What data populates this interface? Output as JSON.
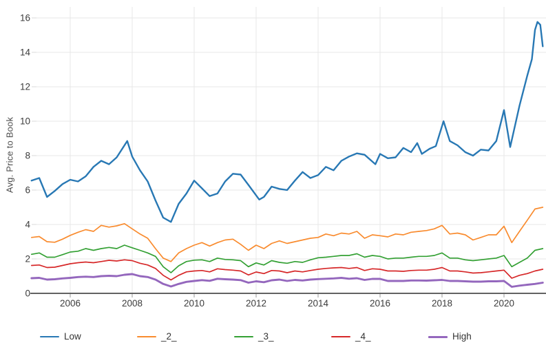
{
  "chart_data": {
    "type": "line",
    "title": "",
    "xlabel": "",
    "ylabel": "Avg. Price to Book",
    "xlim": [
      2004.73,
      2021.36
    ],
    "ylim": [
      0,
      16
    ],
    "grid": true,
    "legend_position": "bottom",
    "x_ticks": [
      2006,
      2008,
      2010,
      2012,
      2014,
      2016,
      2018,
      2020
    ],
    "x_tick_labels": [
      "2006",
      "2008",
      "2010",
      "2012",
      "2014",
      "2016",
      "2018",
      "2020"
    ],
    "y_ticks": [
      0,
      2,
      4,
      6,
      8,
      10,
      12,
      14,
      16
    ],
    "y_tick_labels": [
      "0",
      "2",
      "4",
      "6",
      "8",
      "10",
      "12",
      "14",
      "16"
    ],
    "axis_color": "#2f2f2f",
    "grid_color": "#e7e7e7",
    "tick_label_color": "#3b3b3b",
    "series": [
      {
        "name": "Low",
        "color": "#2878b4",
        "line_width": 2.4,
        "x": [
          2004.75,
          2005.0,
          2005.25,
          2005.5,
          2005.75,
          2006.0,
          2006.25,
          2006.5,
          2006.75,
          2007.0,
          2007.25,
          2007.5,
          2007.84,
          2008.0,
          2008.25,
          2008.5,
          2008.75,
          2009.0,
          2009.25,
          2009.5,
          2009.75,
          2010.0,
          2010.25,
          2010.5,
          2010.75,
          2011.0,
          2011.25,
          2011.5,
          2011.75,
          2012.1,
          2012.25,
          2012.5,
          2012.75,
          2013.0,
          2013.25,
          2013.5,
          2013.75,
          2014.0,
          2014.25,
          2014.5,
          2014.75,
          2015.0,
          2015.25,
          2015.5,
          2015.85,
          2016.0,
          2016.25,
          2016.5,
          2016.75,
          2017.0,
          2017.2,
          2017.35,
          2017.6,
          2017.8,
          2018.05,
          2018.25,
          2018.5,
          2018.75,
          2019.0,
          2019.25,
          2019.5,
          2019.75,
          2020.0,
          2020.2,
          2020.5,
          2020.75,
          2020.9,
          2021.0,
          2021.08,
          2021.17,
          2021.25
        ],
        "y": [
          6.55,
          6.7,
          5.6,
          5.95,
          6.35,
          6.6,
          6.5,
          6.8,
          7.35,
          7.7,
          7.5,
          7.9,
          8.85,
          7.95,
          7.15,
          6.5,
          5.4,
          4.4,
          4.15,
          5.2,
          5.8,
          6.55,
          6.1,
          5.65,
          5.8,
          6.5,
          6.95,
          6.9,
          6.3,
          5.45,
          5.6,
          6.2,
          6.07,
          6.0,
          6.55,
          7.05,
          6.7,
          6.87,
          7.35,
          7.15,
          7.7,
          7.95,
          8.13,
          8.05,
          7.5,
          8.1,
          7.85,
          7.9,
          8.45,
          8.2,
          8.73,
          8.1,
          8.4,
          8.55,
          10.0,
          8.85,
          8.6,
          8.2,
          8.0,
          8.35,
          8.3,
          8.85,
          10.65,
          8.5,
          10.9,
          12.65,
          13.6,
          15.3,
          15.77,
          15.6,
          14.35
        ]
      },
      {
        "name": "_2_",
        "color": "#f98b2e",
        "line_width": 1.7,
        "x": [
          2004.75,
          2005.0,
          2005.25,
          2005.5,
          2005.75,
          2006.0,
          2006.25,
          2006.5,
          2006.75,
          2007.0,
          2007.25,
          2007.5,
          2007.75,
          2008.0,
          2008.25,
          2008.5,
          2008.75,
          2009.0,
          2009.25,
          2009.5,
          2009.75,
          2010.0,
          2010.25,
          2010.5,
          2010.75,
          2011.0,
          2011.25,
          2011.5,
          2011.75,
          2012.0,
          2012.25,
          2012.5,
          2012.75,
          2013.0,
          2013.25,
          2013.5,
          2013.75,
          2014.0,
          2014.25,
          2014.5,
          2014.75,
          2015.0,
          2015.25,
          2015.5,
          2015.75,
          2016.0,
          2016.25,
          2016.5,
          2016.75,
          2017.0,
          2017.25,
          2017.5,
          2017.75,
          2018.0,
          2018.25,
          2018.5,
          2018.75,
          2019.0,
          2019.25,
          2019.5,
          2019.75,
          2020.0,
          2020.25,
          2020.5,
          2020.75,
          2021.0,
          2021.25
        ],
        "y": [
          3.25,
          3.3,
          3.0,
          2.97,
          3.15,
          3.37,
          3.55,
          3.7,
          3.6,
          3.95,
          3.85,
          3.92,
          4.05,
          3.75,
          3.45,
          3.2,
          2.6,
          2.05,
          1.85,
          2.35,
          2.6,
          2.8,
          2.95,
          2.75,
          2.95,
          3.1,
          3.15,
          2.85,
          2.5,
          2.8,
          2.6,
          2.9,
          3.05,
          2.9,
          3.0,
          3.1,
          3.2,
          3.25,
          3.45,
          3.35,
          3.5,
          3.45,
          3.6,
          3.2,
          3.4,
          3.35,
          3.28,
          3.45,
          3.4,
          3.55,
          3.6,
          3.65,
          3.75,
          3.95,
          3.45,
          3.5,
          3.4,
          3.1,
          3.25,
          3.4,
          3.4,
          3.9,
          2.95,
          3.6,
          4.25,
          4.9,
          5.0
        ]
      },
      {
        "name": "_3_",
        "color": "#33a033",
        "line_width": 1.7,
        "x": [
          2004.75,
          2005.0,
          2005.25,
          2005.5,
          2005.75,
          2006.0,
          2006.25,
          2006.5,
          2006.75,
          2007.0,
          2007.25,
          2007.5,
          2007.75,
          2008.0,
          2008.25,
          2008.5,
          2008.75,
          2009.0,
          2009.25,
          2009.5,
          2009.75,
          2010.0,
          2010.25,
          2010.5,
          2010.75,
          2011.0,
          2011.25,
          2011.5,
          2011.75,
          2012.0,
          2012.25,
          2012.5,
          2012.75,
          2013.0,
          2013.25,
          2013.5,
          2013.75,
          2014.0,
          2014.25,
          2014.5,
          2014.75,
          2015.0,
          2015.25,
          2015.5,
          2015.75,
          2016.0,
          2016.25,
          2016.5,
          2016.75,
          2017.0,
          2017.25,
          2017.5,
          2017.75,
          2018.0,
          2018.25,
          2018.5,
          2018.75,
          2019.0,
          2019.25,
          2019.5,
          2019.75,
          2020.0,
          2020.25,
          2020.5,
          2020.75,
          2021.0,
          2021.25
        ],
        "y": [
          2.27,
          2.35,
          2.1,
          2.1,
          2.25,
          2.4,
          2.45,
          2.6,
          2.5,
          2.6,
          2.67,
          2.6,
          2.8,
          2.65,
          2.5,
          2.35,
          2.15,
          1.55,
          1.2,
          1.6,
          1.85,
          1.93,
          1.95,
          1.85,
          2.05,
          1.97,
          1.95,
          1.9,
          1.55,
          1.77,
          1.65,
          1.9,
          1.8,
          1.75,
          1.85,
          1.8,
          1.95,
          2.07,
          2.1,
          2.15,
          2.2,
          2.2,
          2.3,
          2.1,
          2.2,
          2.15,
          2.0,
          2.05,
          2.05,
          2.1,
          2.15,
          2.15,
          2.2,
          2.35,
          2.05,
          2.05,
          1.95,
          1.9,
          1.95,
          2.0,
          2.05,
          2.2,
          1.55,
          1.8,
          2.05,
          2.5,
          2.6
        ]
      },
      {
        "name": "_4_",
        "color": "#d62728",
        "line_width": 1.7,
        "x": [
          2004.75,
          2005.0,
          2005.25,
          2005.5,
          2005.75,
          2006.0,
          2006.25,
          2006.5,
          2006.75,
          2007.0,
          2007.25,
          2007.5,
          2007.75,
          2008.0,
          2008.25,
          2008.5,
          2008.75,
          2009.0,
          2009.25,
          2009.5,
          2009.75,
          2010.0,
          2010.25,
          2010.5,
          2010.75,
          2011.0,
          2011.25,
          2011.5,
          2011.75,
          2012.0,
          2012.25,
          2012.5,
          2012.75,
          2013.0,
          2013.25,
          2013.5,
          2013.75,
          2014.0,
          2014.25,
          2014.5,
          2014.75,
          2015.0,
          2015.25,
          2015.5,
          2015.75,
          2016.0,
          2016.25,
          2016.5,
          2016.75,
          2017.0,
          2017.25,
          2017.5,
          2017.75,
          2018.0,
          2018.25,
          2018.5,
          2018.75,
          2019.0,
          2019.25,
          2019.5,
          2019.75,
          2020.0,
          2020.25,
          2020.5,
          2020.75,
          2021.0,
          2021.25
        ],
        "y": [
          1.62,
          1.65,
          1.5,
          1.52,
          1.62,
          1.72,
          1.78,
          1.82,
          1.78,
          1.85,
          1.92,
          1.88,
          1.95,
          1.9,
          1.75,
          1.65,
          1.45,
          1.05,
          0.78,
          1.05,
          1.25,
          1.3,
          1.33,
          1.25,
          1.43,
          1.38,
          1.35,
          1.3,
          1.07,
          1.24,
          1.15,
          1.33,
          1.3,
          1.2,
          1.3,
          1.25,
          1.33,
          1.4,
          1.45,
          1.48,
          1.5,
          1.45,
          1.5,
          1.33,
          1.43,
          1.4,
          1.3,
          1.3,
          1.28,
          1.33,
          1.35,
          1.35,
          1.4,
          1.5,
          1.3,
          1.3,
          1.25,
          1.18,
          1.2,
          1.25,
          1.3,
          1.35,
          0.88,
          1.05,
          1.15,
          1.3,
          1.4
        ]
      },
      {
        "name": "High",
        "color": "#9467bd",
        "line_width": 2.9,
        "x": [
          2004.75,
          2005.0,
          2005.25,
          2005.5,
          2005.75,
          2006.0,
          2006.25,
          2006.5,
          2006.75,
          2007.0,
          2007.25,
          2007.5,
          2007.75,
          2008.0,
          2008.25,
          2008.5,
          2008.75,
          2009.0,
          2009.25,
          2009.5,
          2009.75,
          2010.0,
          2010.25,
          2010.5,
          2010.75,
          2011.0,
          2011.25,
          2011.5,
          2011.75,
          2012.0,
          2012.25,
          2012.5,
          2012.75,
          2013.0,
          2013.25,
          2013.5,
          2013.75,
          2014.0,
          2014.25,
          2014.5,
          2014.75,
          2015.0,
          2015.25,
          2015.5,
          2015.75,
          2016.0,
          2016.25,
          2016.5,
          2016.75,
          2017.0,
          2017.25,
          2017.5,
          2017.75,
          2018.0,
          2018.25,
          2018.5,
          2018.75,
          2019.0,
          2019.25,
          2019.5,
          2019.75,
          2020.0,
          2020.25,
          2020.5,
          2020.75,
          2021.0,
          2021.25
        ],
        "y": [
          0.88,
          0.9,
          0.8,
          0.82,
          0.87,
          0.9,
          0.95,
          0.97,
          0.95,
          1.0,
          1.02,
          1.0,
          1.08,
          1.12,
          1.0,
          0.95,
          0.8,
          0.55,
          0.4,
          0.55,
          0.67,
          0.72,
          0.77,
          0.73,
          0.85,
          0.82,
          0.8,
          0.77,
          0.62,
          0.7,
          0.65,
          0.76,
          0.8,
          0.72,
          0.78,
          0.75,
          0.8,
          0.83,
          0.85,
          0.87,
          0.9,
          0.85,
          0.88,
          0.78,
          0.84,
          0.84,
          0.72,
          0.72,
          0.72,
          0.75,
          0.75,
          0.74,
          0.76,
          0.78,
          0.72,
          0.72,
          0.7,
          0.68,
          0.68,
          0.7,
          0.7,
          0.72,
          0.38,
          0.45,
          0.5,
          0.55,
          0.62
        ]
      }
    ],
    "legend": {
      "labels": [
        "Low",
        "_2_",
        "_3_",
        "_4_",
        "High"
      ]
    }
  }
}
